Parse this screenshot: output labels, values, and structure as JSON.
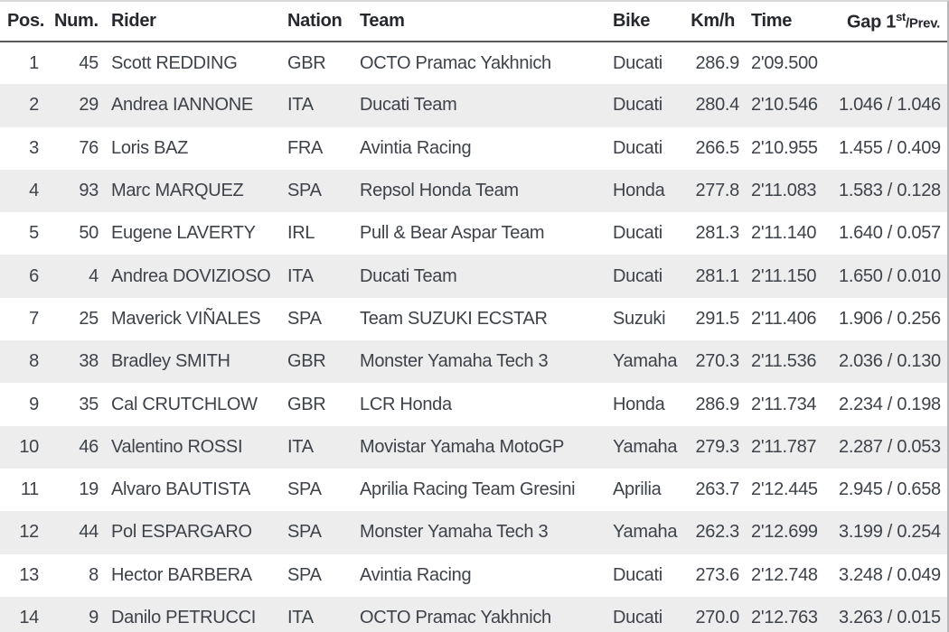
{
  "colors": {
    "row_stripe": "#ededed",
    "header_text": "#26282d",
    "cell_text": "#3e4249",
    "header_underline": "#58595b",
    "top_border": "#d9d9d9",
    "right_border": "#b7b7b9"
  },
  "table": {
    "headers": {
      "pos": "Pos.",
      "num": "Num.",
      "rider": "Rider",
      "nation": "Nation",
      "team": "Team",
      "bike": "Bike",
      "kmh": "Km/h",
      "time": "Time",
      "gap_main": "Gap 1",
      "gap_sup": "st",
      "gap_rest": "/Prev."
    },
    "rows": [
      {
        "pos": "1",
        "num": "45",
        "rider": "Scott REDDING",
        "nation": "GBR",
        "team": "OCTO Pramac Yakhnich",
        "bike": "Ducati",
        "kmh": "286.9",
        "time": "2'09.500",
        "gap": ""
      },
      {
        "pos": "2",
        "num": "29",
        "rider": "Andrea IANNONE",
        "nation": "ITA",
        "team": "Ducati Team",
        "bike": "Ducati",
        "kmh": "280.4",
        "time": "2'10.546",
        "gap": "1.046 / 1.046"
      },
      {
        "pos": "3",
        "num": "76",
        "rider": "Loris BAZ",
        "nation": "FRA",
        "team": "Avintia Racing",
        "bike": "Ducati",
        "kmh": "266.5",
        "time": "2'10.955",
        "gap": "1.455 / 0.409"
      },
      {
        "pos": "4",
        "num": "93",
        "rider": "Marc MARQUEZ",
        "nation": "SPA",
        "team": "Repsol Honda Team",
        "bike": "Honda",
        "kmh": "277.8",
        "time": "2'11.083",
        "gap": "1.583 / 0.128"
      },
      {
        "pos": "5",
        "num": "50",
        "rider": "Eugene LAVERTY",
        "nation": "IRL",
        "team": "Pull & Bear Aspar Team",
        "bike": "Ducati",
        "kmh": "281.3",
        "time": "2'11.140",
        "gap": "1.640 / 0.057"
      },
      {
        "pos": "6",
        "num": "4",
        "rider": "Andrea DOVIZIOSO",
        "nation": "ITA",
        "team": "Ducati Team",
        "bike": "Ducati",
        "kmh": "281.1",
        "time": "2'11.150",
        "gap": "1.650 / 0.010"
      },
      {
        "pos": "7",
        "num": "25",
        "rider": "Maverick VIÑALES",
        "nation": "SPA",
        "team": "Team SUZUKI ECSTAR",
        "bike": "Suzuki",
        "kmh": "291.5",
        "time": "2'11.406",
        "gap": "1.906 / 0.256"
      },
      {
        "pos": "8",
        "num": "38",
        "rider": "Bradley SMITH",
        "nation": "GBR",
        "team": "Monster Yamaha Tech 3",
        "bike": "Yamaha",
        "kmh": "270.3",
        "time": "2'11.536",
        "gap": "2.036 / 0.130"
      },
      {
        "pos": "9",
        "num": "35",
        "rider": "Cal CRUTCHLOW",
        "nation": "GBR",
        "team": "LCR Honda",
        "bike": "Honda",
        "kmh": "286.9",
        "time": "2'11.734",
        "gap": "2.234 / 0.198"
      },
      {
        "pos": "10",
        "num": "46",
        "rider": "Valentino ROSSI",
        "nation": "ITA",
        "team": "Movistar Yamaha MotoGP",
        "bike": "Yamaha",
        "kmh": "279.3",
        "time": "2'11.787",
        "gap": "2.287 / 0.053"
      },
      {
        "pos": "11",
        "num": "19",
        "rider": "Alvaro BAUTISTA",
        "nation": "SPA",
        "team": "Aprilia Racing Team Gresini",
        "bike": "Aprilia",
        "kmh": "263.7",
        "time": "2'12.445",
        "gap": "2.945 / 0.658"
      },
      {
        "pos": "12",
        "num": "44",
        "rider": "Pol ESPARGARO",
        "nation": "SPA",
        "team": "Monster Yamaha Tech 3",
        "bike": "Yamaha",
        "kmh": "262.3",
        "time": "2'12.699",
        "gap": "3.199 / 0.254"
      },
      {
        "pos": "13",
        "num": "8",
        "rider": "Hector BARBERA",
        "nation": "SPA",
        "team": "Avintia Racing",
        "bike": "Ducati",
        "kmh": "273.6",
        "time": "2'12.748",
        "gap": "3.248 / 0.049"
      },
      {
        "pos": "14",
        "num": "9",
        "rider": "Danilo PETRUCCI",
        "nation": "ITA",
        "team": "OCTO Pramac Yakhnich",
        "bike": "Ducati",
        "kmh": "270.0",
        "time": "2'12.763",
        "gap": "3.263 / 0.015"
      }
    ]
  }
}
